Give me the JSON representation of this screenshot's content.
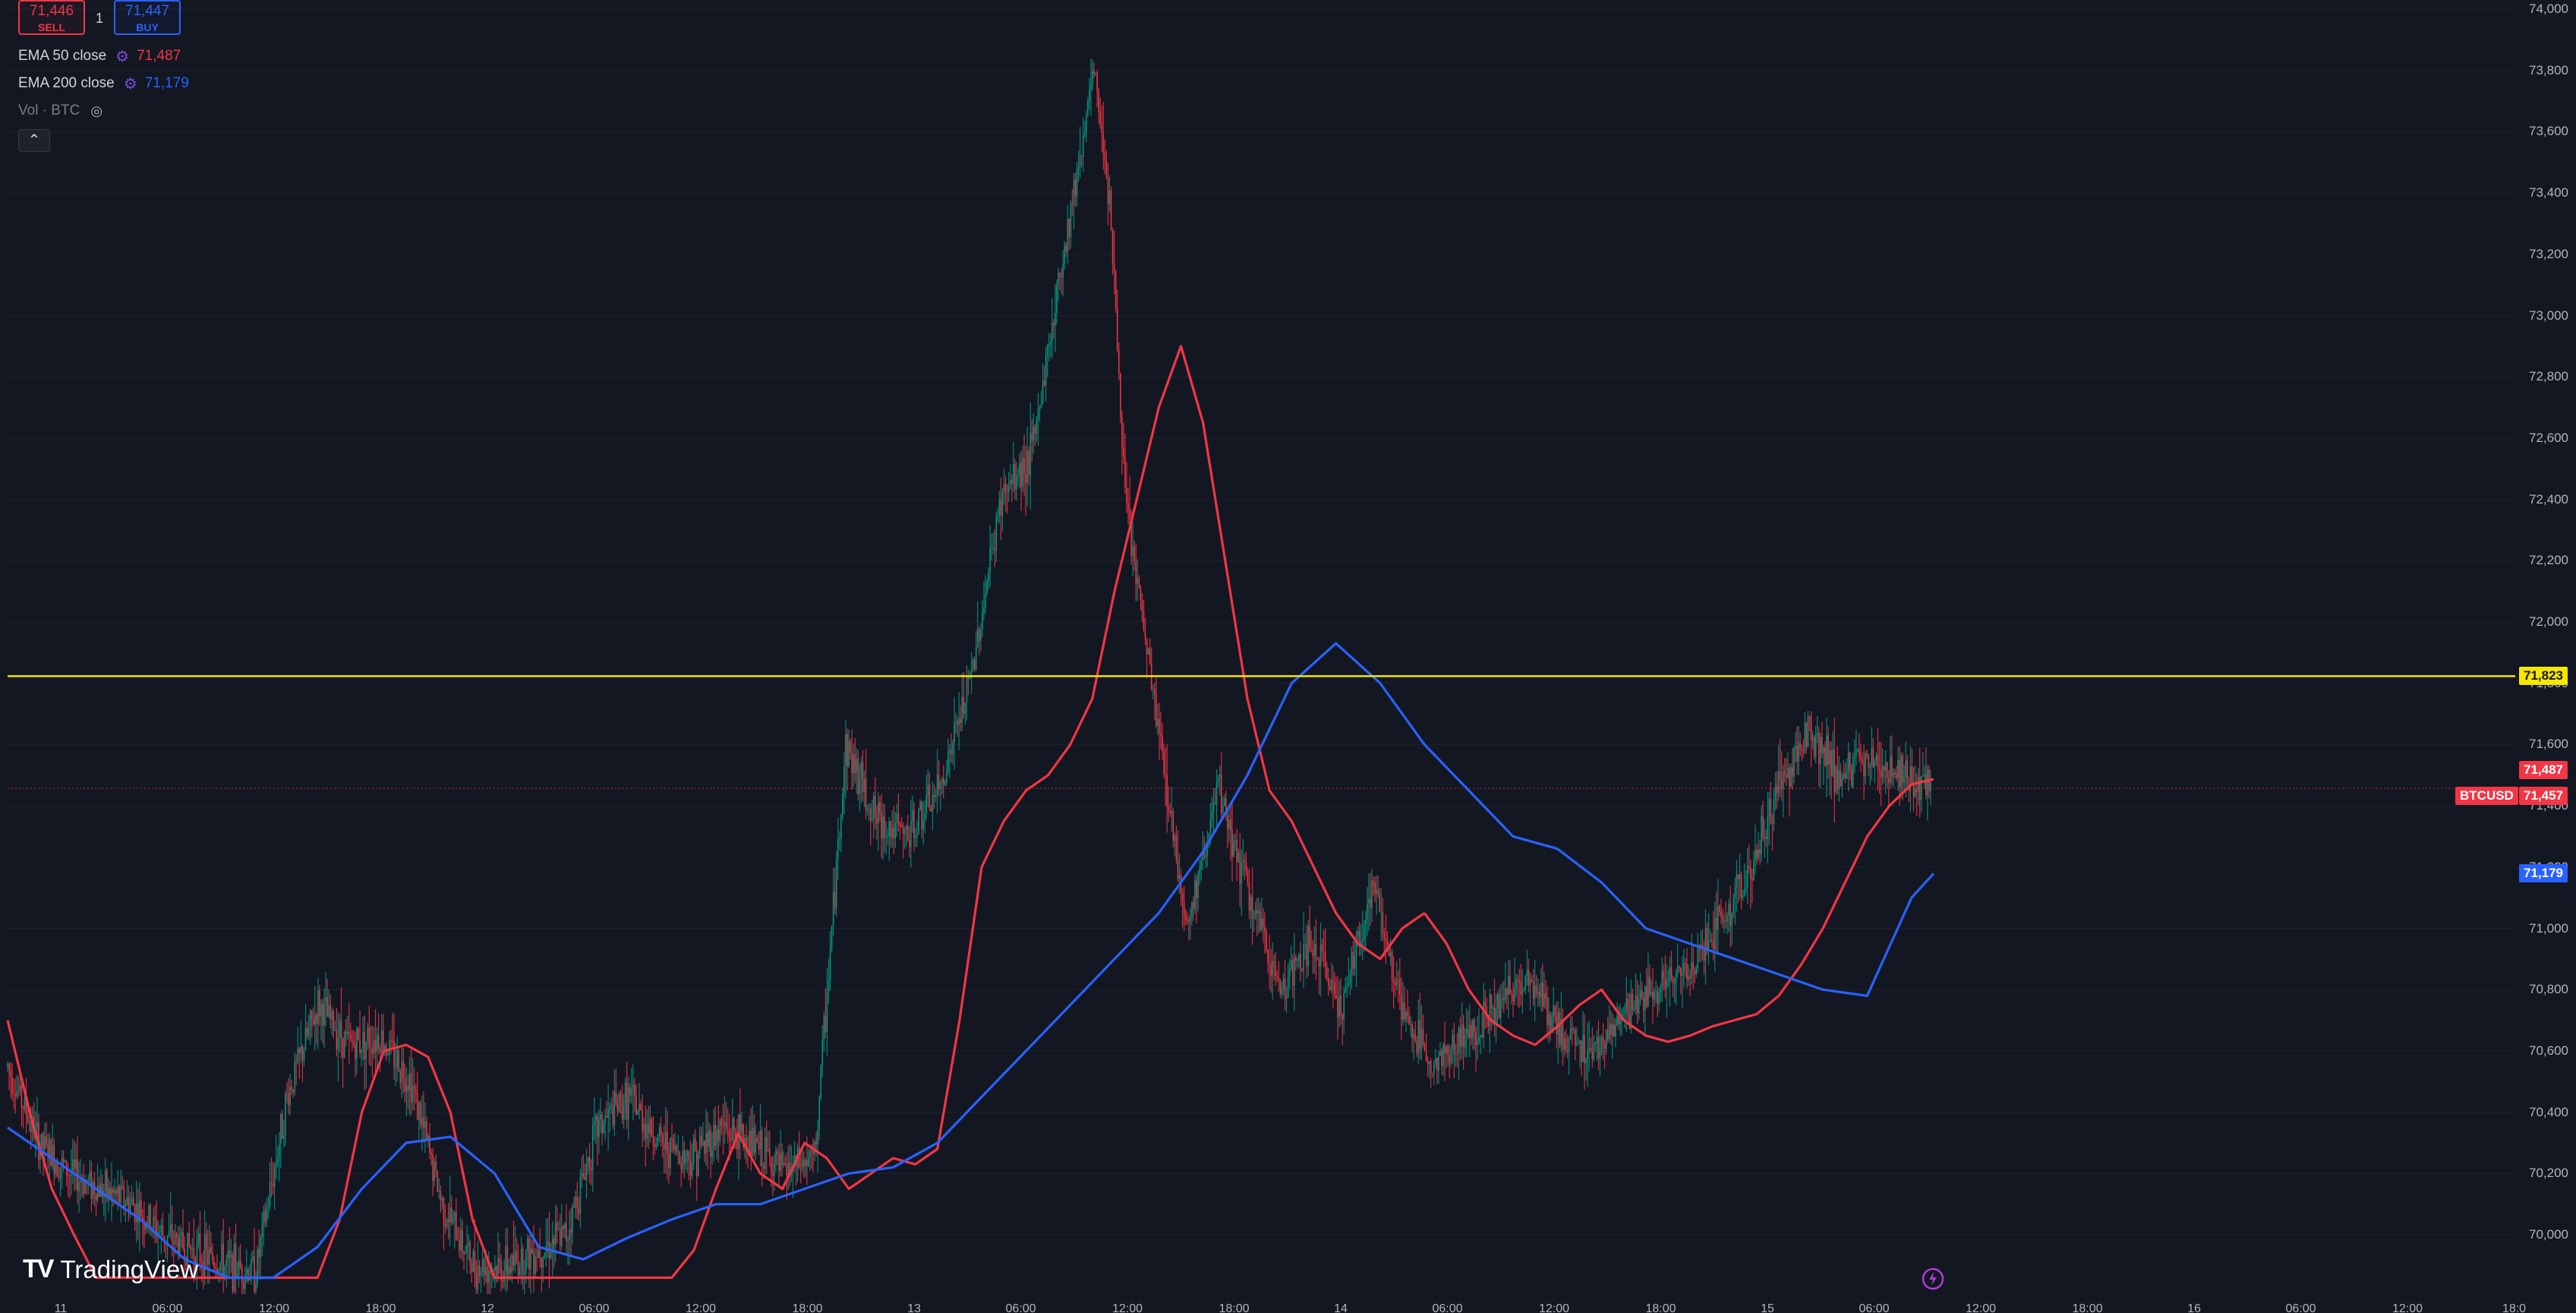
{
  "toolbar": {
    "sell_price": "71,446",
    "sell_label": "SELL",
    "buy_price": "71,447",
    "buy_label": "BUY",
    "spread": "1"
  },
  "legend": {
    "ema50_label": "EMA 50 close",
    "ema50_value": "71,487",
    "ema200_label": "EMA 200 close",
    "ema200_value": "71,179",
    "vol_label": "Vol · BTC",
    "collapse_icon": "chevron-up-icon",
    "settings_icon": "gear-icon",
    "visibility_icon": "eye-icon"
  },
  "logo": {
    "text": "TradingView",
    "icon": "tradingview-logo"
  },
  "colors": {
    "background": "#131722",
    "up": "#089981",
    "down": "#f23645",
    "ema50": "#f23645",
    "ema200": "#2962ff",
    "hline": "#f7e600",
    "axis_text": "#b2b5be"
  },
  "chart_data": {
    "type": "candlestick",
    "symbol": "BTCUSD",
    "ylim": [
      69860,
      74020
    ],
    "y_ticks": [
      "70,000",
      "70,200",
      "70,400",
      "70,600",
      "70,800",
      "71,000",
      "71,200",
      "71,400",
      "71,600",
      "71,800",
      "72,000",
      "72,200",
      "72,400",
      "72,600",
      "72,800",
      "73,000",
      "73,200",
      "73,400",
      "73,600",
      "73,800",
      "74,000"
    ],
    "x_ticks": [
      "11",
      "06:00",
      "12:00",
      "18:00",
      "12",
      "06:00",
      "12:00",
      "18:00",
      "13",
      "06:00",
      "12:00",
      "18:00",
      "14",
      "06:00",
      "12:00",
      "18:00",
      "15",
      "06:00",
      "12:00",
      "18:00",
      "16",
      "06:00",
      "12:00",
      "18:0"
    ],
    "horizontal_line": {
      "price": 71823,
      "label": "71,823"
    },
    "price_labels": {
      "last": "71,457",
      "ema50": "71,487",
      "ema200": "71,179",
      "symbol_tag": "BTCUSD"
    },
    "series": [
      {
        "name": "EMA 50 close",
        "x": [
          0,
          12,
          24,
          36,
          48,
          60,
          72,
          84,
          96,
          108,
          120,
          132,
          144,
          156,
          168,
          180,
          192,
          204,
          216,
          228,
          240,
          252,
          264,
          276,
          288,
          300,
          312,
          324,
          336,
          348,
          360,
          372,
          384,
          396,
          408,
          420,
          432,
          444,
          456,
          468,
          480,
          492,
          504,
          516,
          528,
          540,
          552,
          564,
          576,
          588,
          600,
          612,
          624,
          636,
          648,
          660,
          672,
          684,
          696,
          708,
          720,
          732,
          744,
          756,
          768
        ],
        "y": [
          70700,
          70400,
          70150,
          70000,
          69860,
          69860,
          69860,
          69860,
          69860,
          69860,
          69860,
          69860,
          69860,
          69860,
          69860,
          70050,
          70400,
          70600,
          70620,
          70580,
          70400,
          70050,
          69860,
          69860,
          69860,
          69860,
          69860,
          69860,
          69860,
          69860,
          69860,
          69950,
          70150,
          70330,
          70200,
          70150,
          70300,
          70250,
          70150,
          70200,
          70250,
          70230,
          70280,
          70700,
          71200,
          71350,
          71450,
          71500,
          71600,
          71750,
          72100,
          72400,
          72700,
          72900,
          72650,
          72200,
          71750,
          71450,
          71350,
          71200,
          71050,
          70950,
          70900,
          71000,
          71050
        ]
      },
      {
        "name": "EMA 50 close (cont.)",
        "x": [
          768,
          780,
          792,
          804,
          816,
          828,
          840,
          852,
          864,
          876,
          888,
          900,
          912,
          924,
          936,
          948,
          960,
          972,
          984,
          996,
          1008,
          1020,
          1032,
          1044
        ],
        "y": [
          71050,
          70950,
          70800,
          70700,
          70650,
          70620,
          70680,
          70750,
          70800,
          70700,
          70650,
          70630,
          70650,
          70680,
          70700,
          70720,
          70780,
          70880,
          71000,
          71150,
          71300,
          71400,
          71470,
          71487
        ]
      },
      {
        "name": "EMA 200 close",
        "x": [
          0,
          24,
          48,
          72,
          96,
          120,
          144,
          168,
          192,
          216,
          240,
          264,
          288,
          312,
          336,
          360,
          384,
          408,
          432,
          456,
          480,
          504,
          528,
          552,
          576,
          600,
          624,
          648,
          672,
          696,
          720,
          744,
          768,
          792,
          816,
          840,
          864,
          888,
          912,
          936,
          960,
          984,
          1008,
          1032,
          1044
        ],
        "y": [
          70350,
          70250,
          70150,
          70050,
          69920,
          69860,
          69860,
          69960,
          70150,
          70300,
          70320,
          70200,
          69960,
          69920,
          69990,
          70050,
          70100,
          70100,
          70150,
          70200,
          70220,
          70300,
          70450,
          70600,
          70750,
          70900,
          71050,
          71250,
          71500,
          71800,
          71930,
          71800,
          71600,
          71450,
          71300,
          71260,
          71150,
          71000,
          70950,
          70900,
          70850,
          70800,
          70780,
          71100,
          71179
        ]
      }
    ]
  }
}
